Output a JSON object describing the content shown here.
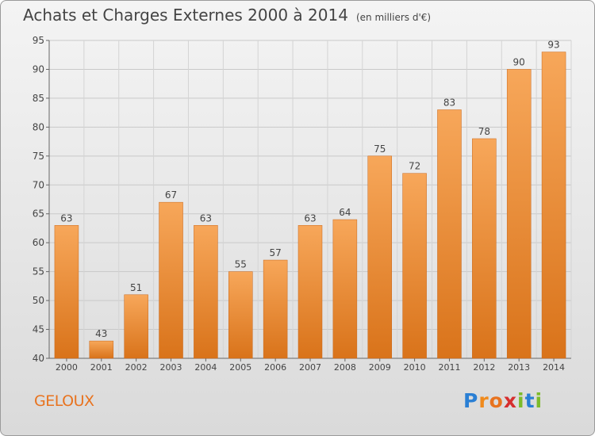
{
  "header": {
    "title": "Achats et Charges Externes 2000 à 2014",
    "unit": "(en milliers d'€)"
  },
  "commune": "GELOUX",
  "logo": {
    "text": "Proxiti"
  },
  "colors": {
    "bar_top": "#f7a75a",
    "bar_bottom": "#d9731a",
    "commune": "#e8731f"
  },
  "chart_data": {
    "type": "bar",
    "title": "Achats et Charges Externes 2000 à 2014",
    "xlabel": "",
    "ylabel": "",
    "categories": [
      "2000",
      "2001",
      "2002",
      "2003",
      "2004",
      "2005",
      "2006",
      "2007",
      "2008",
      "2009",
      "2010",
      "2011",
      "2012",
      "2013",
      "2014"
    ],
    "values": [
      63,
      43,
      51,
      67,
      63,
      55,
      57,
      63,
      64,
      75,
      72,
      83,
      78,
      90,
      93
    ],
    "ylim": [
      40,
      95
    ],
    "yticks": [
      40,
      45,
      50,
      55,
      60,
      65,
      70,
      75,
      80,
      85,
      90,
      95
    ],
    "grid": true,
    "data_labels": true
  }
}
